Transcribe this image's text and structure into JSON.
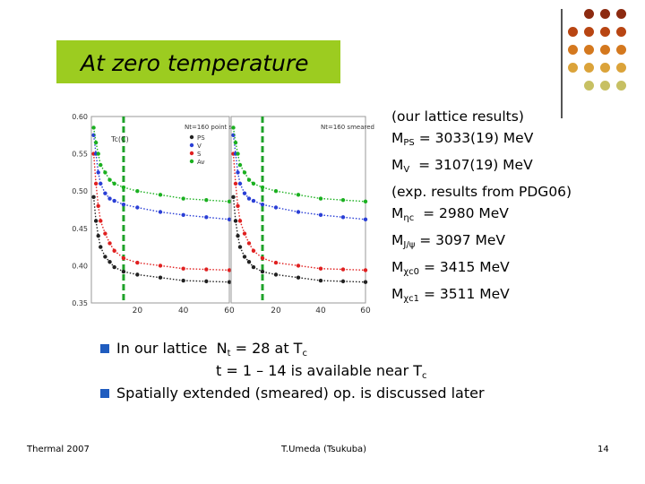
{
  "slide": {
    "title": "At zero temperature",
    "page_number": "14",
    "footer_left": "Thermal 2007",
    "footer_center": "T.Umeda (Tsukuba)"
  },
  "decor_colors": [
    "#8c2a10",
    "#b84512",
    "#d4781e",
    "#dba33a",
    "#c7c063"
  ],
  "lattice": {
    "heading": "(our lattice results)",
    "lines": [
      {
        "label": "M",
        "sub": "PS",
        "text": " = 3033(19) MeV"
      },
      {
        "label": "M",
        "sub": "V",
        "text": "  = 3107(19) MeV"
      }
    ]
  },
  "experiment": {
    "heading": "(exp. results from PDG06)",
    "lines": [
      {
        "label": "M",
        "sub": "ηc",
        "text": "  = 2980 MeV"
      },
      {
        "label": "M",
        "sub": "J/ψ",
        "text": " = 3097 MeV"
      },
      {
        "label": "M",
        "sub": "χc0",
        "text": " = 3415 MeV"
      },
      {
        "label": "M",
        "sub": "χc1",
        "text": " = 3511 MeV"
      }
    ]
  },
  "bullets": [
    {
      "pre": "In our lattice  N",
      "sub": "t",
      "post": " = 28 at T",
      "sub2": "c"
    },
    {
      "pre": "t = 1 – 14 is available near T",
      "sub": "c",
      "indent": true
    },
    {
      "pre": "Spatially extended (smeared) op. is discussed later"
    }
  ],
  "chart_data": {
    "type": "scatter",
    "y_ticks": [
      "0.60",
      "0.55",
      "0.50",
      "0.45",
      "0.40",
      "0.35"
    ],
    "x_ticks_left": [
      "20",
      "40",
      "60"
    ],
    "x_ticks_right": [
      "20",
      "40",
      "60"
    ],
    "y_range": [
      0.35,
      0.6
    ],
    "x_range": [
      0,
      60
    ],
    "panels": [
      {
        "note": "Nt=160 point src",
        "tc_label": "Tc(C)"
      },
      {
        "note": "Nt=160 smeared src"
      }
    ],
    "legend": [
      "PS",
      "V",
      "S",
      "Av"
    ],
    "colors": {
      "PS": "#222222",
      "V": "#2a3fd6",
      "S": "#e02020",
      "Av": "#1bb020"
    },
    "tc_line_x": 14,
    "series": [
      {
        "name": "PS",
        "x": [
          1,
          2,
          3,
          4,
          6,
          8,
          10,
          14,
          20,
          30,
          40,
          50,
          60
        ],
        "y": [
          0.492,
          0.46,
          0.44,
          0.425,
          0.412,
          0.405,
          0.398,
          0.392,
          0.388,
          0.384,
          0.38,
          0.379,
          0.378
        ]
      },
      {
        "name": "S",
        "x": [
          1,
          2,
          3,
          4,
          6,
          8,
          10,
          14,
          20,
          30,
          40,
          50,
          60
        ],
        "y": [
          0.55,
          0.51,
          0.48,
          0.46,
          0.443,
          0.43,
          0.42,
          0.41,
          0.404,
          0.4,
          0.396,
          0.395,
          0.394
        ]
      },
      {
        "name": "V",
        "x": [
          1,
          2,
          3,
          4,
          6,
          8,
          10,
          14,
          20,
          30,
          40,
          50,
          60
        ],
        "y": [
          0.575,
          0.55,
          0.525,
          0.51,
          0.497,
          0.49,
          0.487,
          0.482,
          0.478,
          0.472,
          0.468,
          0.465,
          0.462
        ]
      },
      {
        "name": "Av",
        "x": [
          1,
          2,
          3,
          4,
          6,
          8,
          10,
          14,
          20,
          30,
          40,
          50,
          60
        ],
        "y": [
          0.585,
          0.565,
          0.55,
          0.535,
          0.525,
          0.515,
          0.51,
          0.505,
          0.5,
          0.495,
          0.49,
          0.488,
          0.486
        ]
      }
    ]
  }
}
